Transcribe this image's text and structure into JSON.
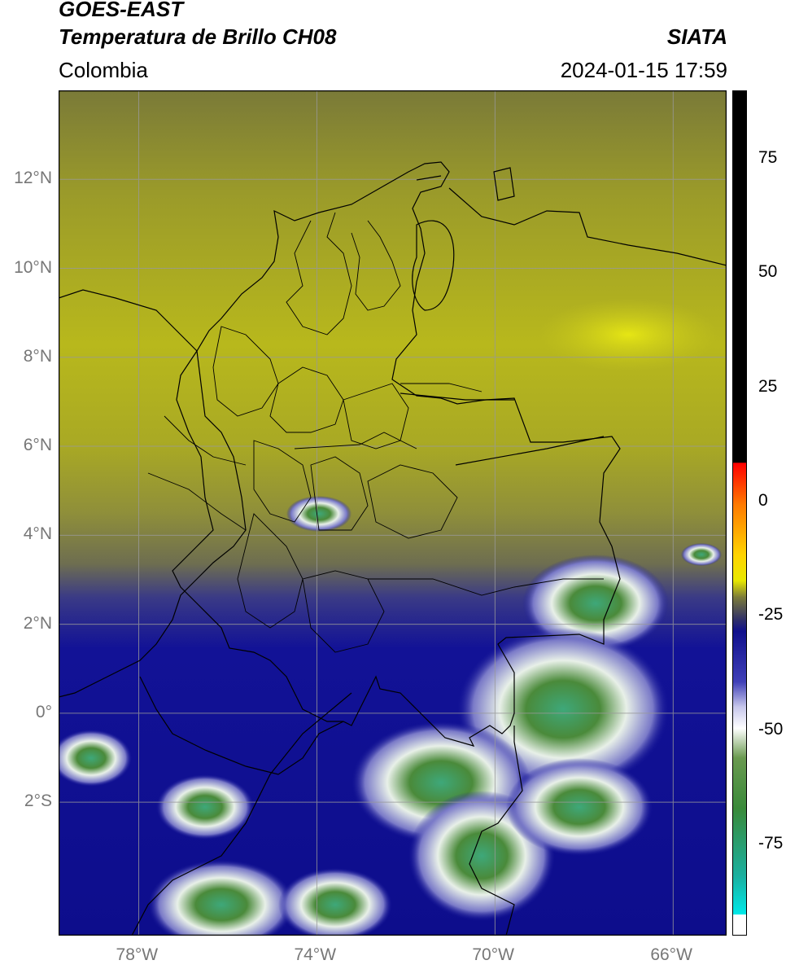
{
  "header": {
    "title_line1": "GOES-EAST",
    "title_line2": "Temperatura de Brillo CH08",
    "region": "Colombia",
    "brand": "SIATA",
    "timestamp": "2024-01-15 17:59"
  },
  "map": {
    "lon_ticks": [
      {
        "value": -78,
        "label": "78°W"
      },
      {
        "value": -74,
        "label": "74°W"
      },
      {
        "value": -70,
        "label": "70°W"
      },
      {
        "value": -66,
        "label": "66°W"
      }
    ],
    "lat_ticks": [
      {
        "value": 12,
        "label": "12°N"
      },
      {
        "value": 10,
        "label": "10°N"
      },
      {
        "value": 8,
        "label": "8°N"
      },
      {
        "value": 6,
        "label": "6°N"
      },
      {
        "value": 4,
        "label": "4°N"
      },
      {
        "value": 2,
        "label": "2°N"
      },
      {
        "value": 0,
        "label": "0°"
      },
      {
        "value": -2,
        "label": "2°S"
      }
    ],
    "extent": {
      "lon_min": -79.8,
      "lon_max": -64.8,
      "lat_min": -5.0,
      "lat_max": 14.0
    },
    "colors": {
      "border": "#000000",
      "grid": "#999999"
    }
  },
  "colorbar": {
    "labels": [
      {
        "value": 75,
        "label": "75"
      },
      {
        "value": 50,
        "label": "50"
      },
      {
        "value": 25,
        "label": "25"
      },
      {
        "value": 0,
        "label": "0"
      },
      {
        "value": -25,
        "label": "-25"
      },
      {
        "value": -50,
        "label": "-50"
      },
      {
        "value": -75,
        "label": "-75"
      }
    ],
    "range": [
      -95,
      90
    ]
  }
}
